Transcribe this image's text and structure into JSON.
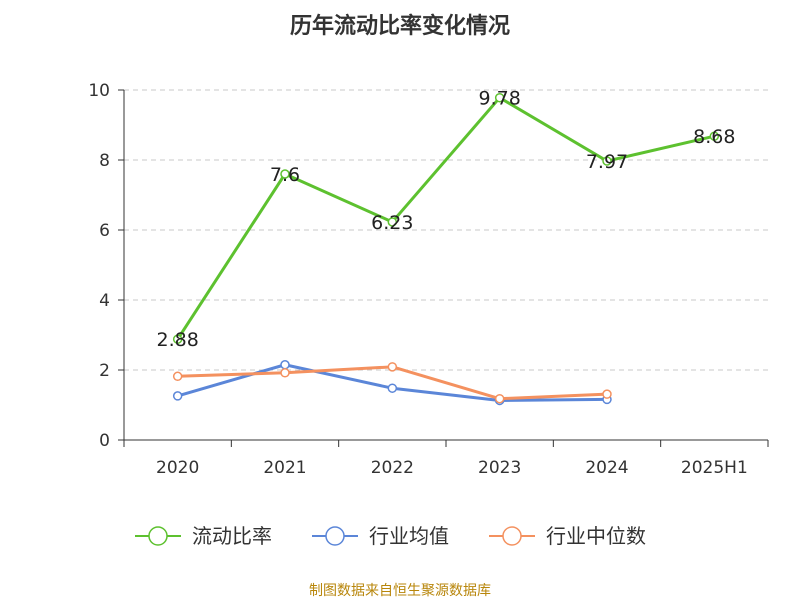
{
  "chart_data": {
    "type": "line",
    "title": "历年流动比率变化情况",
    "categories": [
      "2020",
      "2021",
      "2022",
      "2023",
      "2024",
      "2025H1"
    ],
    "ylim": [
      0,
      10
    ],
    "yticks": [
      "0",
      "2",
      "4",
      "6",
      "8",
      "10"
    ],
    "grid": true,
    "legend_placement": "bottom",
    "series": [
      {
        "name": "流动比率",
        "color": "#5dc12f",
        "values": [
          2.88,
          7.6,
          6.23,
          9.78,
          7.97,
          8.68
        ],
        "labels": [
          "2.88",
          "7.6",
          "6.23",
          "9.78",
          "7.97",
          "8.68"
        ]
      },
      {
        "name": "行业均值",
        "color": "#5b86d8",
        "values": [
          1.26,
          2.15,
          1.48,
          1.13,
          1.16,
          null
        ]
      },
      {
        "name": "行业中位数",
        "color": "#f4915f",
        "values": [
          1.82,
          1.92,
          2.09,
          1.18,
          1.31,
          null
        ]
      }
    ]
  },
  "source_note": "制图数据来自恒生聚源数据库"
}
